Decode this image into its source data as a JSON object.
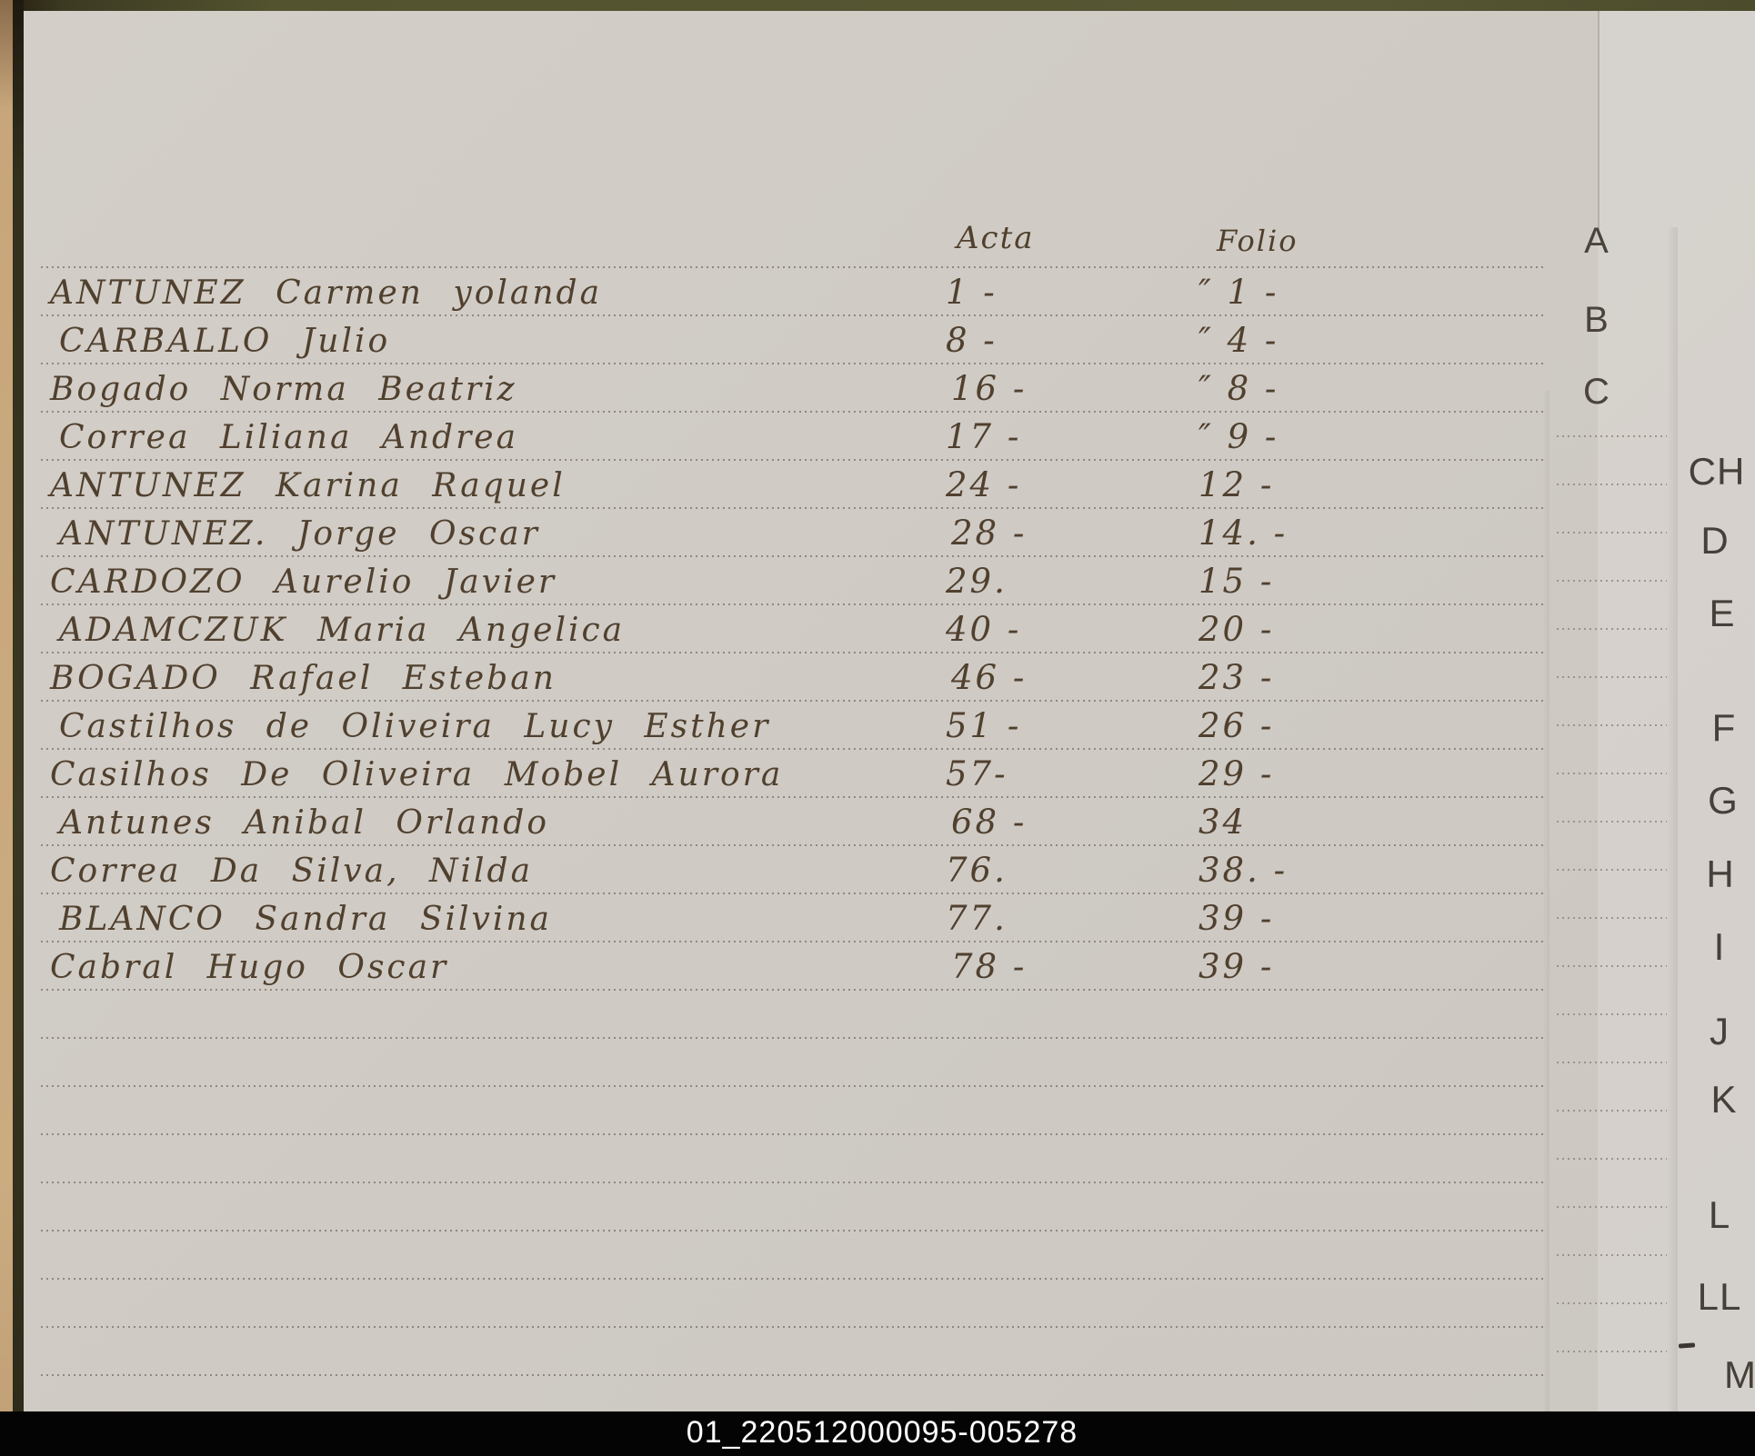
{
  "columns": {
    "acta": "Acta",
    "folio": "Folio"
  },
  "entries": [
    {
      "name": "ANTUNEZ Carmen yolanda",
      "acta": "1 -",
      "folio": "″ 1 -"
    },
    {
      "name": "CARBALLO Julio",
      "acta": "8 -",
      "folio": "″ 4 -"
    },
    {
      "name": "Bogado Norma Beatriz",
      "acta": "16 -",
      "folio": "″ 8 -"
    },
    {
      "name": "Correa Liliana Andrea",
      "acta": "17 -",
      "folio": "″ 9 -"
    },
    {
      "name": "ANTUNEZ Karina Raquel",
      "acta": "24 -",
      "folio": "12 -"
    },
    {
      "name": "ANTUNEZ. Jorge Oscar",
      "acta": "28 -",
      "folio": "14. -"
    },
    {
      "name": "CARDOZO Aurelio Javier",
      "acta": "29.",
      "folio": "15 -"
    },
    {
      "name": "ADAMCZUK Maria Angelica",
      "acta": "40 -",
      "folio": "20 -"
    },
    {
      "name": "BOGADO Rafael Esteban",
      "acta": "46 -",
      "folio": "23 -"
    },
    {
      "name": "Castilhos de Oliveira Lucy Esther",
      "acta": "51 -",
      "folio": "26 -"
    },
    {
      "name": "Casilhos De Oliveira Mobel Aurora",
      "acta": "57-",
      "folio": "29 -"
    },
    {
      "name": "Antunes Anibal Orlando",
      "acta": "68 -",
      "folio": "34"
    },
    {
      "name": "Correa Da Silva, Nilda",
      "acta": "76.",
      "folio": "38. -"
    },
    {
      "name": "BLANCO Sandra Silvina",
      "acta": "77.",
      "folio": "39 -"
    },
    {
      "name": "Cabral Hugo Oscar",
      "acta": "78 -",
      "folio": "39 -"
    }
  ],
  "tabs_primary": [
    "A",
    "B",
    "C"
  ],
  "tabs_secondary": [
    "CH",
    "D",
    "E",
    "F",
    "G",
    "H",
    "I",
    "J",
    "K",
    "L",
    "LL",
    "M"
  ],
  "tab_dash": "-",
  "caption": "01_220512000095-005278",
  "colors": {
    "page": "#d0cbc5",
    "ink": "#50402e",
    "tab_letters": "#46403a",
    "ruled_line": "#867d71",
    "cover_edge": "#4f4f30",
    "page_stack_edge": "#c9a87c",
    "caption_bar": "#000000",
    "caption_text": "#ffffff"
  }
}
